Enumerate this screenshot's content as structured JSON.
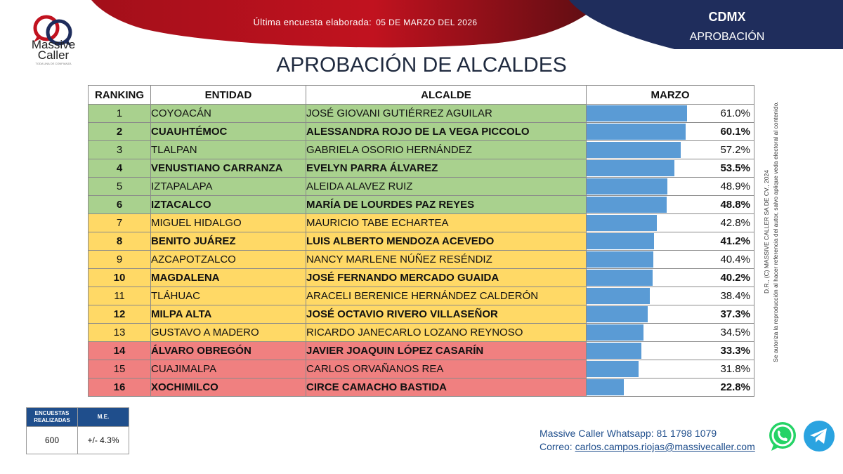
{
  "header": {
    "survey_label": "Última encuesta elaborada:",
    "survey_date": "05 DE MARZO DEL 2026",
    "region": "CDMX",
    "topic": "APROBACIÓN"
  },
  "logo": {
    "name": "Massive Caller",
    "tagline": "TODA UNA DE CONFIANZA"
  },
  "colors": {
    "red": "#c1121f",
    "navy": "#1f2d5c",
    "green": "#a9d18e",
    "yellow": "#ffd966",
    "pink": "#f08080",
    "bar": "#5a9bd5"
  },
  "chart_data": {
    "type": "table",
    "title": "APROBACIÓN DE ALCALDES",
    "columns": [
      "RANKING",
      "ENTIDAD",
      "ALCALDE",
      "MARZO"
    ],
    "rows": [
      {
        "rank": "1",
        "entity": "COYOACÁN",
        "mayor": "JOSÉ GIOVANI GUTIÉRREZ AGUILAR",
        "value": 61.0,
        "label": "61.0%",
        "band": "green",
        "bold": false
      },
      {
        "rank": "2",
        "entity": "CUAUHTÉMOC",
        "mayor": "ALESSANDRA ROJO DE LA VEGA PICCOLO",
        "value": 60.1,
        "label": "60.1%",
        "band": "green",
        "bold": true
      },
      {
        "rank": "3",
        "entity": "TLALPAN",
        "mayor": "GABRIELA OSORIO HERNÁNDEZ",
        "value": 57.2,
        "label": "57.2%",
        "band": "green",
        "bold": false
      },
      {
        "rank": "4",
        "entity": "VENUSTIANO CARRANZA",
        "mayor": "EVELYN PARRA ÁLVAREZ",
        "value": 53.5,
        "label": "53.5%",
        "band": "green",
        "bold": true
      },
      {
        "rank": "5",
        "entity": "IZTAPALAPA",
        "mayor": "ALEIDA ALAVEZ RUIZ",
        "value": 48.9,
        "label": "48.9%",
        "band": "green",
        "bold": false
      },
      {
        "rank": "6",
        "entity": "IZTACALCO",
        "mayor": "MARÍA DE LOURDES PAZ REYES",
        "value": 48.8,
        "label": "48.8%",
        "band": "green",
        "bold": true
      },
      {
        "rank": "7",
        "entity": "MIGUEL HIDALGO",
        "mayor": "MAURICIO TABE ECHARTEA",
        "value": 42.8,
        "label": "42.8%",
        "band": "yellow",
        "bold": false
      },
      {
        "rank": "8",
        "entity": "BENITO JUÁREZ",
        "mayor": "LUIS ALBERTO MENDOZA ACEVEDO",
        "value": 41.2,
        "label": "41.2%",
        "band": "yellow",
        "bold": true
      },
      {
        "rank": "9",
        "entity": "AZCAPOTZALCO",
        "mayor": "NANCY MARLENE NÚÑEZ RESÉNDIZ",
        "value": 40.4,
        "label": "40.4%",
        "band": "yellow",
        "bold": false
      },
      {
        "rank": "10",
        "entity": "MAGDALENA",
        "mayor": "JOSÉ FERNANDO MERCADO GUAIDA",
        "value": 40.2,
        "label": "40.2%",
        "band": "yellow",
        "bold": true
      },
      {
        "rank": "11",
        "entity": "TLÁHUAC",
        "mayor": "ARACELI BERENICE HERNÁNDEZ CALDERÓN",
        "value": 38.4,
        "label": "38.4%",
        "band": "yellow",
        "bold": false
      },
      {
        "rank": "12",
        "entity": "MILPA ALTA",
        "mayor": "JOSÉ OCTAVIO RIVERO VILLASEÑOR",
        "value": 37.3,
        "label": "37.3%",
        "band": "yellow",
        "bold": true
      },
      {
        "rank": "13",
        "entity": "GUSTAVO A MADERO",
        "mayor": "RICARDO JANECARLO LOZANO REYNOSO",
        "value": 34.5,
        "label": "34.5%",
        "band": "yellow",
        "bold": false
      },
      {
        "rank": "14",
        "entity": "ÁLVARO OBREGÓN",
        "mayor": "JAVIER JOAQUIN LÓPEZ CASARÍN",
        "value": 33.3,
        "label": "33.3%",
        "band": "red",
        "bold": true
      },
      {
        "rank": "15",
        "entity": "CUAJIMALPA",
        "mayor": "CARLOS ORVAÑANOS REA",
        "value": 31.8,
        "label": "31.8%",
        "band": "red",
        "bold": false
      },
      {
        "rank": "16",
        "entity": "XOCHIMILCO",
        "mayor": "CIRCE CAMACHO BASTIDA",
        "value": 22.8,
        "label": "22.8%",
        "band": "red",
        "bold": true
      }
    ],
    "bar_scale_max": 100
  },
  "stats": {
    "surveys_label": "ENCUESTAS REALIZADAS",
    "surveys_value": "600",
    "me_label": "M.E.",
    "me_value": "+/-  4.3%"
  },
  "contact": {
    "whatsapp": "Massive Caller Whatsapp: 81 1798 1079",
    "email_label": "Correo:",
    "email": "carlos.campos.riojas@massivecaller.com"
  },
  "legal": {
    "line1": "D.R., (C) MASSIVE CALLER SA DE CV., 2024",
    "line2": "Se autoriza la reproducción al hacer referencia del autor, salvo aplique veda electoral al contenido."
  },
  "icons": {
    "whatsapp": "whatsapp-icon",
    "telegram": "telegram-icon"
  }
}
